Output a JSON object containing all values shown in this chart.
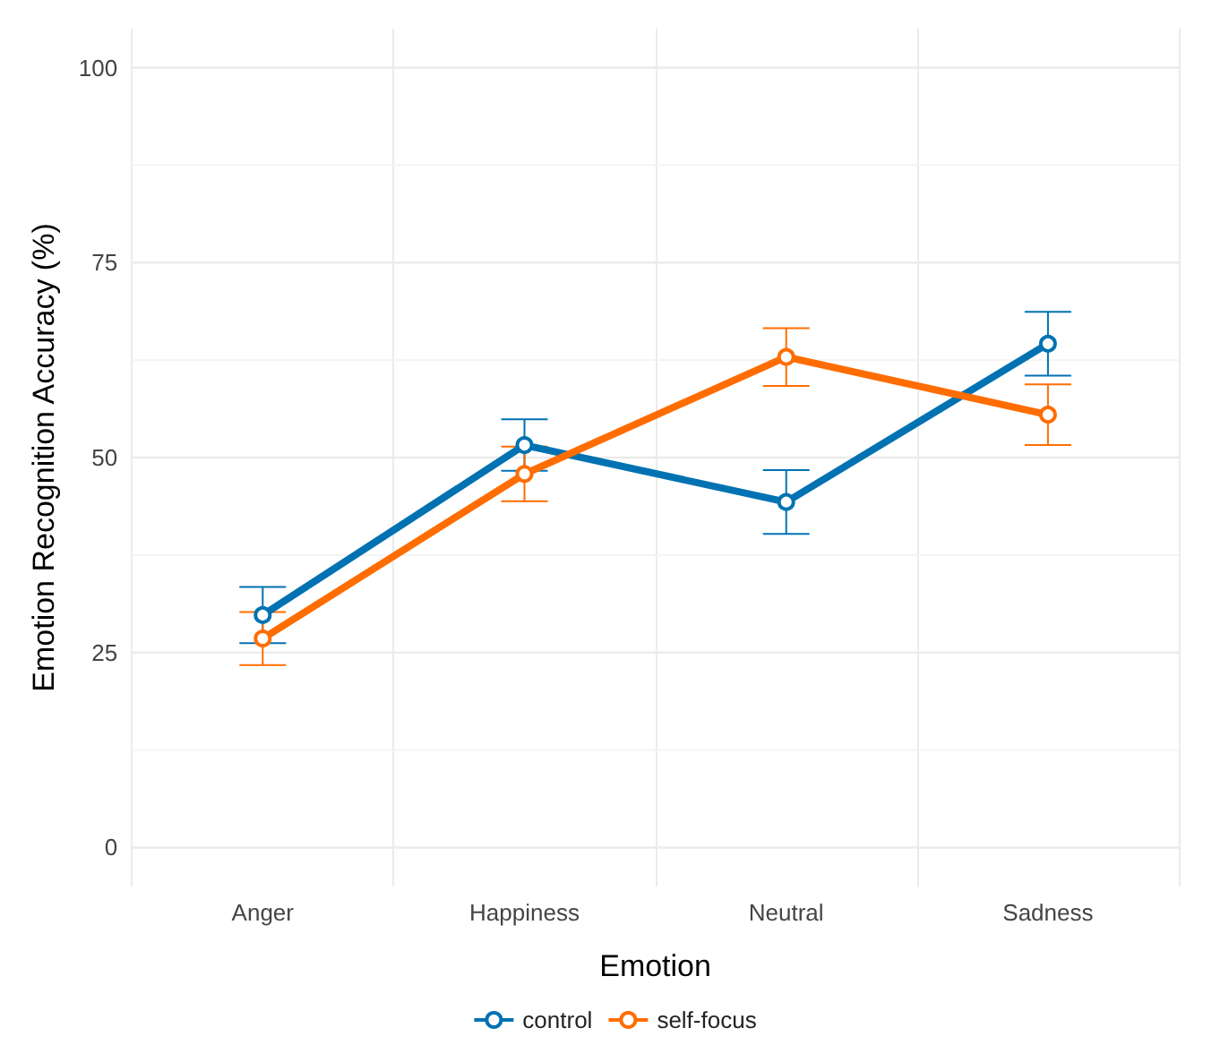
{
  "chart_data": {
    "type": "line",
    "xlabel": "Emotion",
    "ylabel": "Emotion Recognition Accuracy (%)",
    "categories": [
      "Anger",
      "Happiness",
      "Neutral",
      "Sadness"
    ],
    "series": [
      {
        "name": "control",
        "color": "#0072b2",
        "values": [
          29.8,
          51.6,
          44.3,
          64.6
        ],
        "errors": [
          3.6,
          3.3,
          4.1,
          4.1
        ]
      },
      {
        "name": "self-focus",
        "color": "#ff6d00",
        "values": [
          26.8,
          47.9,
          62.9,
          55.5
        ],
        "errors": [
          3.4,
          3.5,
          3.7,
          3.9
        ]
      }
    ],
    "ylim": [
      -5,
      105
    ],
    "yticks": [
      0,
      25,
      50,
      75,
      100
    ],
    "grid": true,
    "legend": "bottom",
    "marker": "circle",
    "line_style": "solid"
  }
}
